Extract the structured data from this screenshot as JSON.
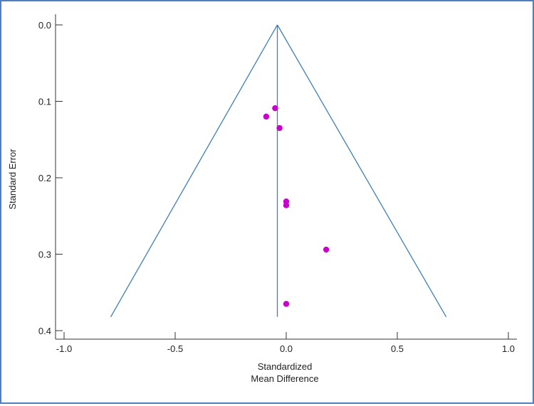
{
  "chart_data": {
    "type": "scatter",
    "title": "",
    "xlabel_lines": [
      "Standardized",
      "Mean Difference"
    ],
    "ylabel": "Standard Error",
    "xlim": [
      -1.0,
      1.0
    ],
    "ylim": [
      0.0,
      0.4
    ],
    "y_inverted": true,
    "x_ticks": [
      -1.0,
      -0.5,
      0.0,
      0.5,
      1.0
    ],
    "x_tick_labels": [
      "-1.0",
      "-0.5",
      "0.0",
      "0.5",
      "1.0"
    ],
    "y_ticks": [
      0.0,
      0.1,
      0.2,
      0.3,
      0.4
    ],
    "y_tick_labels": [
      "0.0",
      "0.1",
      "0.2",
      "0.3",
      "0.4"
    ],
    "points": [
      {
        "x": -0.05,
        "y": 0.109
      },
      {
        "x": -0.09,
        "y": 0.12
      },
      {
        "x": -0.03,
        "y": 0.135
      },
      {
        "x": 0.0,
        "y": 0.231
      },
      {
        "x": 0.0,
        "y": 0.236
      },
      {
        "x": 0.18,
        "y": 0.294
      },
      {
        "x": 0.0,
        "y": 0.365
      }
    ],
    "funnel": {
      "center_x": -0.04,
      "left_bottom_x": -0.79,
      "right_bottom_x": 0.72,
      "bottom_se": 0.382
    },
    "grid": false,
    "legend": "none"
  },
  "colors": {
    "point": "#cc00cc",
    "funnel": "#3f7fb7",
    "axis": "#333333",
    "border": "#4f7fbf"
  }
}
